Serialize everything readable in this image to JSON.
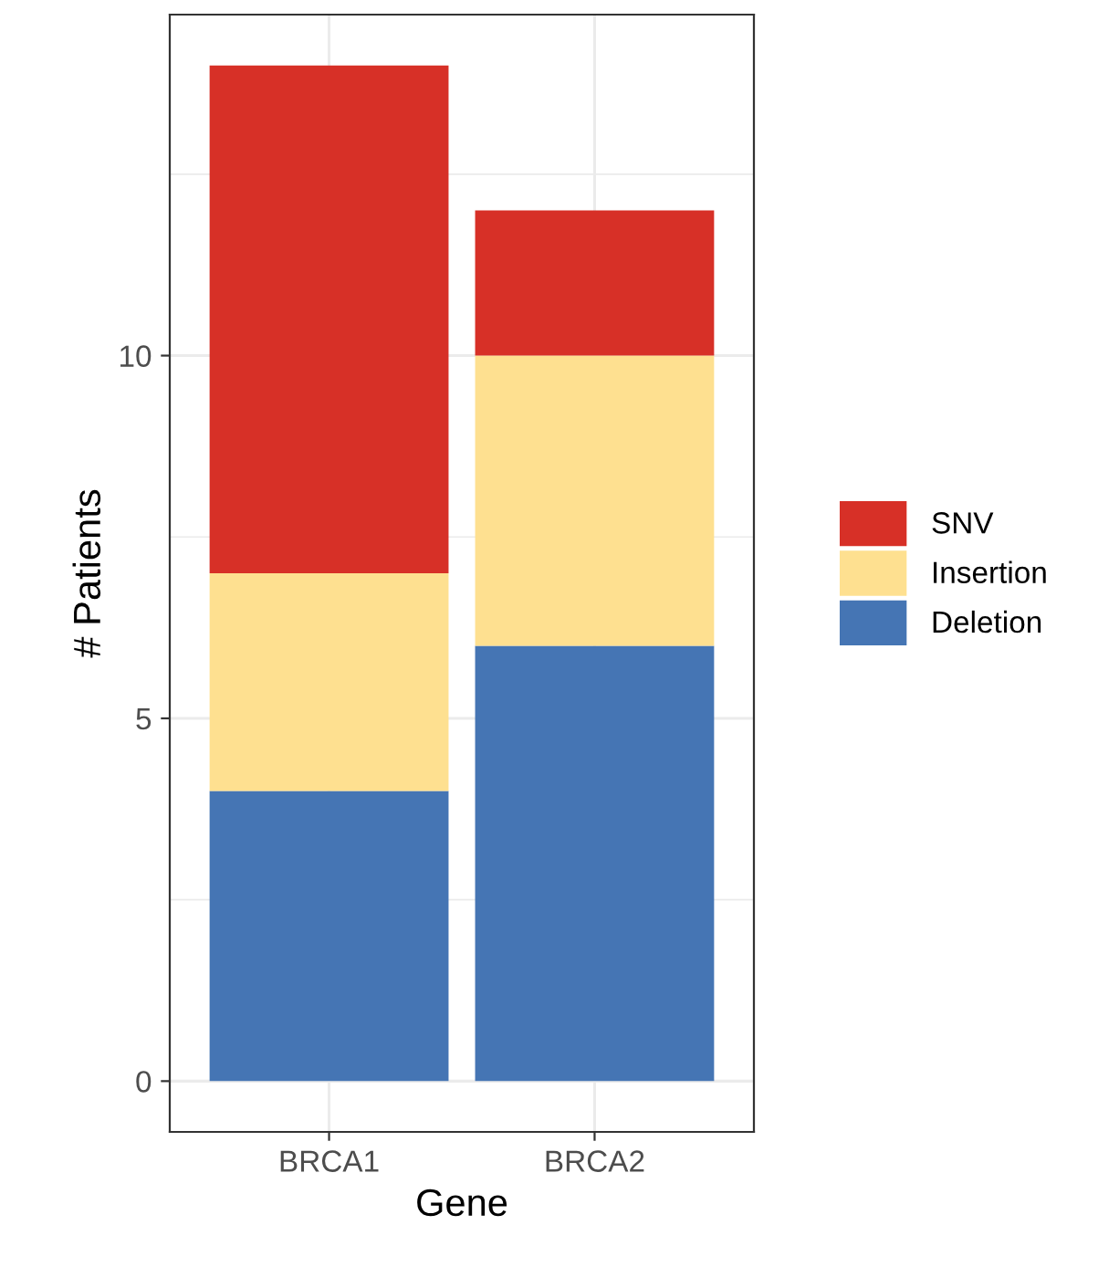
{
  "chart_data": {
    "type": "bar",
    "xlabel": "Gene",
    "ylabel": "# Patients",
    "categories": [
      "BRCA1",
      "BRCA2"
    ],
    "stacked": true,
    "series": [
      {
        "name": "Deletion",
        "color": "#4575b4",
        "values": [
          4,
          6
        ]
      },
      {
        "name": "Insertion",
        "color": "#fee090",
        "values": [
          3,
          4
        ]
      },
      {
        "name": "SNV",
        "color": "#d73027",
        "values": [
          7,
          2
        ]
      }
    ],
    "ylim": [
      -0.7,
      14.7
    ],
    "yticks": [
      0,
      5,
      10
    ],
    "grid": true,
    "legend": "right"
  }
}
